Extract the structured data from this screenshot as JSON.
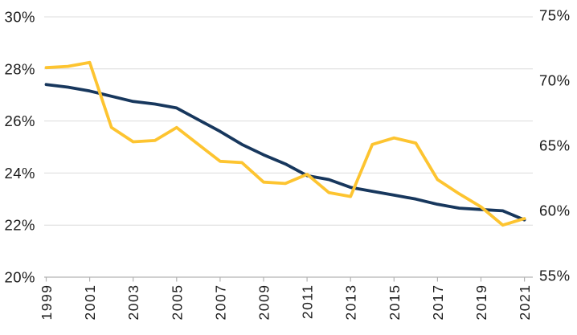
{
  "chart_data": {
    "type": "line",
    "title": "",
    "x": [
      1999,
      2000,
      2001,
      2002,
      2003,
      2004,
      2005,
      2006,
      2007,
      2008,
      2009,
      2010,
      2011,
      2012,
      2013,
      2014,
      2015,
      2016,
      2017,
      2018,
      2019,
      2020,
      2021
    ],
    "x_tick_labels": [
      "1999",
      "2001",
      "2003",
      "2005",
      "2007",
      "2009",
      "2011",
      "2013",
      "2015",
      "2017",
      "2019",
      "2021"
    ],
    "series": [
      {
        "name": "navy-line-left-axis",
        "axis": "left",
        "color": "#17375d",
        "values": [
          27.4,
          27.3,
          27.15,
          26.95,
          26.75,
          26.65,
          26.5,
          26.05,
          25.6,
          25.1,
          24.7,
          24.35,
          23.9,
          23.75,
          23.45,
          23.3,
          23.15,
          23.0,
          22.8,
          22.65,
          22.6,
          22.55,
          22.2
        ]
      },
      {
        "name": "gold-line-right-axis",
        "axis": "right",
        "color": "#fdc430",
        "values": [
          71.1,
          71.2,
          71.5,
          66.5,
          65.4,
          65.5,
          66.5,
          65.2,
          63.9,
          63.8,
          62.3,
          62.2,
          62.9,
          61.5,
          61.2,
          65.2,
          65.7,
          65.3,
          62.5,
          61.4,
          60.4,
          59.0,
          59.5
        ]
      }
    ],
    "left_axis": {
      "min": 20,
      "max": 30,
      "tick_values": [
        30,
        28,
        26,
        24,
        22,
        20
      ],
      "tick_labels": [
        "30%",
        "28%",
        "26%",
        "24%",
        "22%",
        "20%"
      ]
    },
    "right_axis": {
      "min": 55,
      "max": 75,
      "tick_values": [
        75,
        70,
        65,
        60,
        55
      ],
      "tick_labels": [
        "75%",
        "70%",
        "65%",
        "60%",
        "55%"
      ]
    },
    "grid": "horizontal",
    "legend": "none",
    "colors": {
      "grid_line": "#dcdcdc",
      "axis_line": "#b3b3b3",
      "label_text": "#1a1a1a",
      "background": "#ffffff"
    }
  }
}
